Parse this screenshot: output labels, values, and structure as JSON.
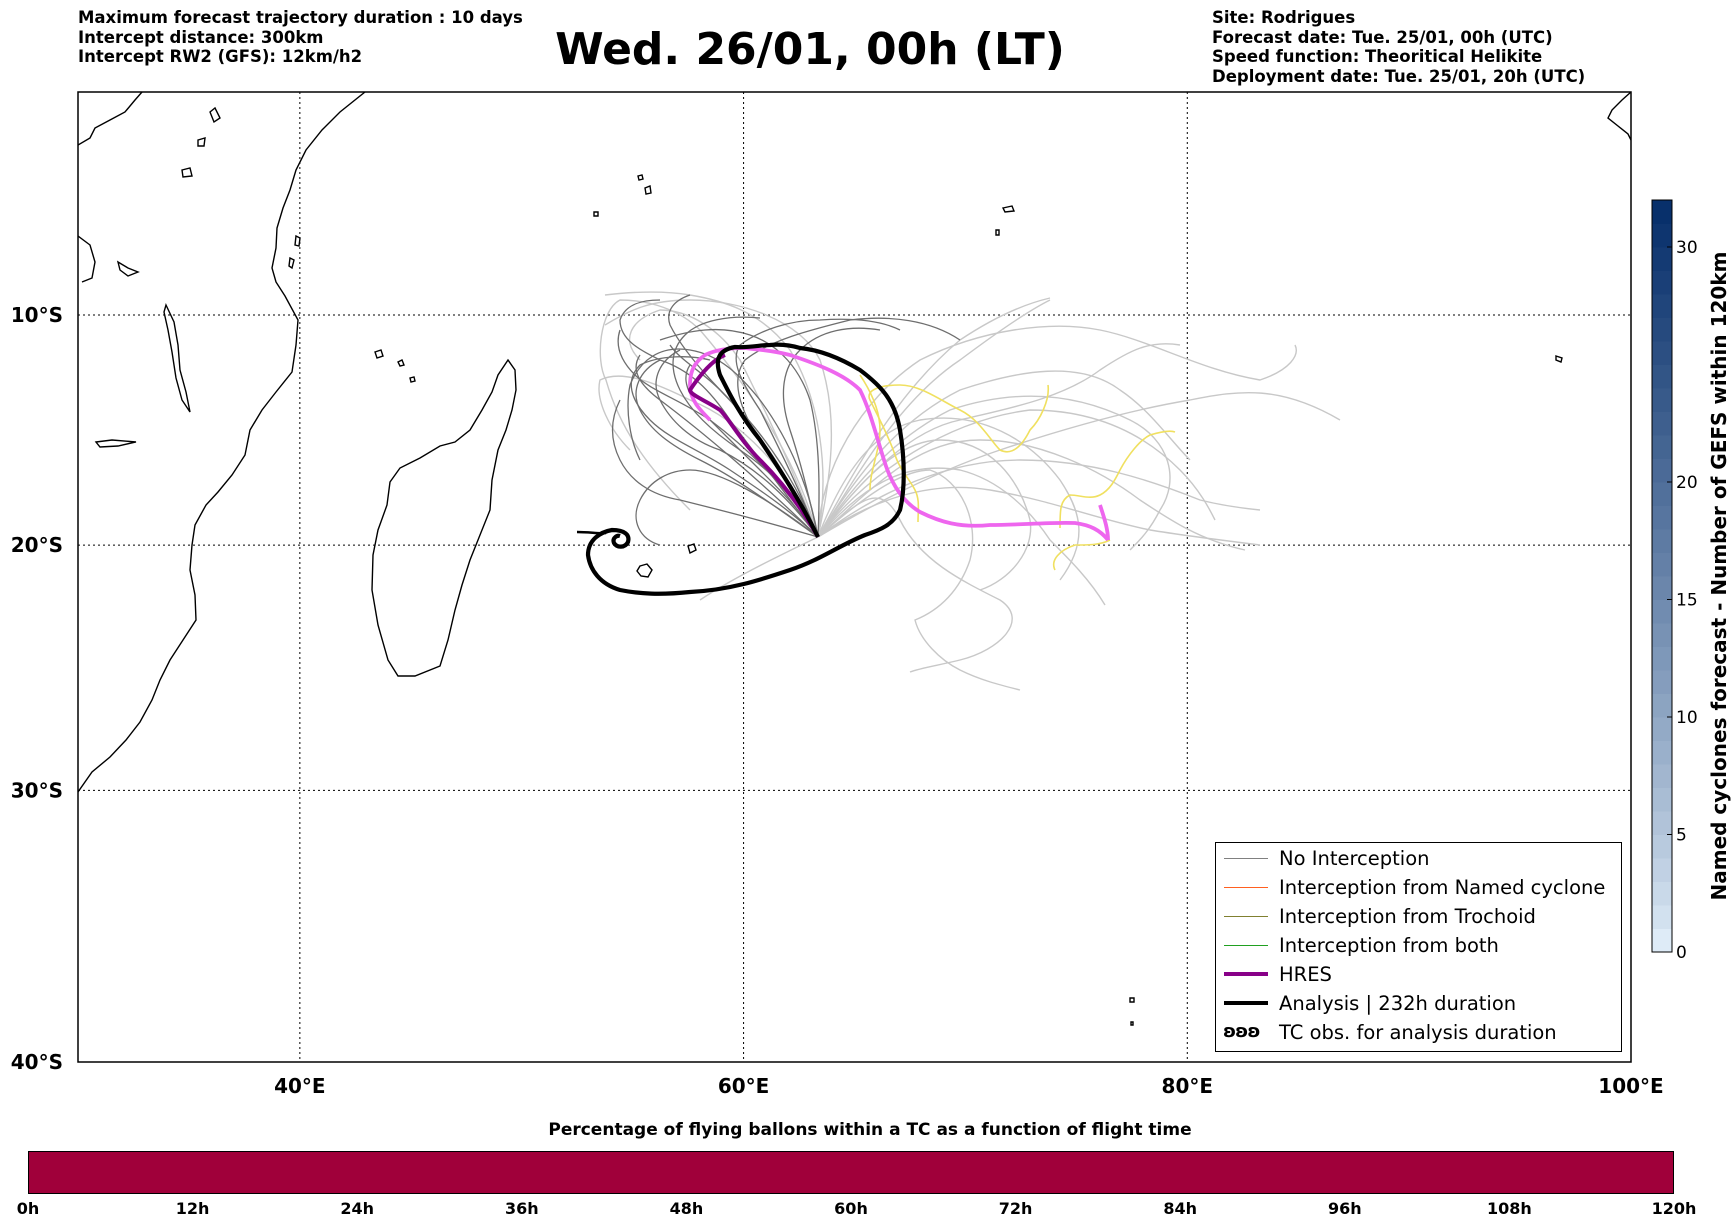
{
  "header": {
    "left": [
      "Maximum forecast trajectory duration : 10 days",
      "Intercept distance: 300km",
      "Intercept RW2 (GFS):  12km/h2"
    ],
    "title": "Wed. 26/01, 00h (LT)",
    "right": [
      "Site: Rodrigues",
      "Forecast date: Tue. 25/01, 00h (UTC)",
      "Speed function: Theoritical Helikite",
      "Deployment date: Tue. 25/01, 20h (UTC)"
    ]
  },
  "map": {
    "lon_range": [
      30,
      100
    ],
    "lat_range": [
      -40,
      0
    ],
    "lat_labels": [
      {
        "lat": -10,
        "text": "10°S"
      },
      {
        "lat": -20,
        "text": "20°S"
      },
      {
        "lat": -30,
        "text": "30°S"
      },
      {
        "lat": -40,
        "text": "40°S"
      }
    ],
    "lon_labels": [
      {
        "lon": 40,
        "text": "40°E"
      },
      {
        "lon": 60,
        "text": "60°E"
      },
      {
        "lon": 80,
        "text": "80°E"
      },
      {
        "lon": 100,
        "text": "100°E"
      }
    ],
    "grid_lats": [
      -10,
      -20,
      -30
    ],
    "grid_lons": [
      40,
      60,
      80
    ],
    "colors": {
      "no_interception": "#808080",
      "gefs_light": "#c8c8c8",
      "named_cyclone": "#ff6020",
      "trochoid": "#808030",
      "both": "#20a020",
      "hres": "#880088",
      "hres_track": "#ee66ee",
      "analysis": "#000000",
      "yellow_track": "#f0e060"
    }
  },
  "legend": {
    "items": [
      {
        "label": "No Interception",
        "color": "#808080",
        "width": 1.2
      },
      {
        "label": "Interception from Named cyclone",
        "color": "#ff6020",
        "width": 1.2
      },
      {
        "label": "Interception from Trochoid",
        "color": "#808030",
        "width": 1.2
      },
      {
        "label": "Interception from both",
        "color": "#20a020",
        "width": 1.2
      },
      {
        "label": "HRES",
        "color": "#880088",
        "width": 4
      },
      {
        "label": "Analysis | 232h duration",
        "color": "#000000",
        "width": 4
      }
    ],
    "tc_obs": {
      "glyph": "ʚʚʚ",
      "label": "TC obs. for analysis duration"
    }
  },
  "colorbar_right": {
    "label": "Named cyclones forecast - Number of GEFS within 120km",
    "ticks": [
      "0",
      "5",
      "10",
      "15",
      "20",
      "30"
    ],
    "tick_values": [
      0,
      5,
      10,
      15,
      20,
      30
    ],
    "range": [
      0,
      32
    ]
  },
  "bottom_bar": {
    "title": "Percentage of flying ballons within a TC as a function of flight time",
    "color": "#a0003a",
    "ticks": [
      "0h",
      "12h",
      "24h",
      "36h",
      "48h",
      "60h",
      "72h",
      "84h",
      "96h",
      "108h",
      "120h"
    ]
  }
}
